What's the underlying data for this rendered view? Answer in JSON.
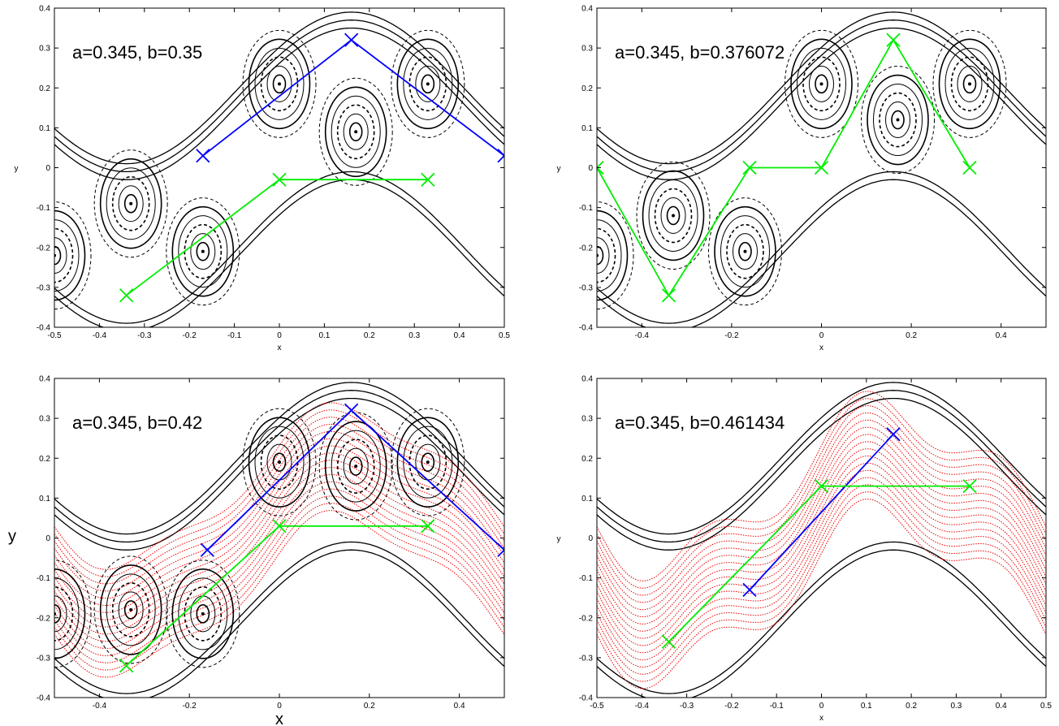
{
  "colors": {
    "black": "#000000",
    "blue": "#0000ff",
    "green": "#00ee00",
    "red": "#ee0000"
  },
  "chart_data": [
    {
      "type": "scatter",
      "annotation": "a=0.345, b=0.35",
      "xlabel": "x",
      "ylabel": "y",
      "xlim": [
        -0.5,
        0.5
      ],
      "ylim": [
        -0.4,
        0.4
      ],
      "xticks": [
        "-0.5",
        "-0.4",
        "-0.3",
        "-0.2",
        "-0.1",
        "0",
        "0.1",
        "0.2",
        "0.3",
        "0.4",
        "0.5"
      ],
      "yticks": [
        "-0.4",
        "-0.3",
        "-0.2",
        "-0.1",
        "0",
        "0.1",
        "0.2",
        "0.3",
        "0.4"
      ],
      "orbit_colors": [
        "black",
        "blue",
        "green"
      ],
      "separatrices": {
        "blue": [
          {
            "x": 0.16,
            "y": 0.32
          },
          {
            "x": -0.17,
            "y": 0.03
          },
          {
            "x": 0.5,
            "y": 0.03
          }
        ],
        "green": [
          {
            "x": 0.0,
            "y": -0.03
          },
          {
            "x": 0.33,
            "y": -0.03
          },
          {
            "x": -0.34,
            "y": -0.32
          }
        ]
      },
      "elliptic_centers": [
        {
          "x": 0.0,
          "y": 0.21
        },
        {
          "x": 0.33,
          "y": 0.21
        },
        {
          "x": 0.17,
          "y": 0.09
        },
        {
          "x": -0.33,
          "y": -0.09
        },
        {
          "x": -0.17,
          "y": -0.21
        },
        {
          "x": -0.5,
          "y": -0.22
        }
      ]
    },
    {
      "type": "scatter",
      "annotation": "a=0.345, b=0.376072",
      "xlabel": "x",
      "ylabel": "y",
      "xlim": [
        -0.5,
        0.5
      ],
      "ylim": [
        -0.4,
        0.4
      ],
      "xticks": [
        "-0.4",
        "-0.2",
        "0",
        "0.2",
        "0.4"
      ],
      "yticks": [
        "-0.4",
        "-0.3",
        "-0.2",
        "-0.1",
        "0",
        "0.1",
        "0.2",
        "0.3",
        "0.4"
      ],
      "orbit_colors": [
        "black",
        "green"
      ],
      "separatrices": {
        "green": [
          {
            "x": 0.16,
            "y": 0.32
          },
          {
            "x": -0.16,
            "y": 0.0
          },
          {
            "x": 0.0,
            "y": 0.0
          },
          {
            "x": 0.33,
            "y": 0.0
          },
          {
            "x": -0.34,
            "y": -0.32
          },
          {
            "x": -0.5,
            "y": 0.0
          }
        ]
      },
      "elliptic_centers": [
        {
          "x": 0.0,
          "y": 0.21
        },
        {
          "x": 0.33,
          "y": 0.21
        },
        {
          "x": 0.17,
          "y": 0.12
        },
        {
          "x": -0.33,
          "y": -0.12
        },
        {
          "x": -0.17,
          "y": -0.21
        },
        {
          "x": -0.5,
          "y": -0.22
        }
      ]
    },
    {
      "type": "scatter",
      "annotation": "a=0.345, b=0.42",
      "xlabel": "x",
      "ylabel": "y",
      "xlim": [
        -0.5,
        0.5
      ],
      "ylim": [
        -0.4,
        0.4
      ],
      "xticks": [
        "-0.4",
        "-0.2",
        "0",
        "0.2",
        "0.4"
      ],
      "yticks": [
        "-0.4",
        "-0.3",
        "-0.2",
        "-0.1",
        "0",
        "0.1",
        "0.2",
        "0.3",
        "0.4"
      ],
      "orbit_colors": [
        "black",
        "blue",
        "green",
        "red"
      ],
      "separatrices": {
        "blue": [
          {
            "x": 0.16,
            "y": 0.32
          },
          {
            "x": -0.16,
            "y": -0.03
          },
          {
            "x": 0.5,
            "y": -0.03
          }
        ],
        "green": [
          {
            "x": 0.0,
            "y": 0.03
          },
          {
            "x": 0.33,
            "y": 0.03
          },
          {
            "x": -0.34,
            "y": -0.32
          }
        ]
      },
      "elliptic_centers": [
        {
          "x": 0.0,
          "y": 0.19
        },
        {
          "x": 0.33,
          "y": 0.19
        },
        {
          "x": 0.17,
          "y": 0.18
        },
        {
          "x": -0.33,
          "y": -0.18
        },
        {
          "x": -0.17,
          "y": -0.19
        },
        {
          "x": -0.5,
          "y": -0.19
        }
      ]
    },
    {
      "type": "scatter",
      "annotation": "a=0.345, b=0.461434",
      "xlabel": "x",
      "ylabel": "y",
      "xlim": [
        -0.5,
        0.5
      ],
      "ylim": [
        -0.4,
        0.4
      ],
      "xticks": [
        "-0.5",
        "-0.4",
        "-0.3",
        "-0.2",
        "-0.1",
        "0",
        "0.1",
        "0.2",
        "0.3",
        "0.4",
        "0.5"
      ],
      "yticks": [
        "-0.4",
        "-0.3",
        "-0.2",
        "-0.1",
        "0",
        "0.1",
        "0.2",
        "0.3",
        "0.4"
      ],
      "orbit_colors": [
        "black",
        "blue",
        "green",
        "red"
      ],
      "separatrices": {
        "blue": [
          {
            "x": 0.16,
            "y": 0.26
          },
          {
            "x": -0.16,
            "y": -0.13
          }
        ],
        "green": [
          {
            "x": 0.0,
            "y": 0.13
          },
          {
            "x": 0.33,
            "y": 0.13
          },
          {
            "x": -0.34,
            "y": -0.26
          }
        ]
      },
      "elliptic_centers": []
    }
  ]
}
